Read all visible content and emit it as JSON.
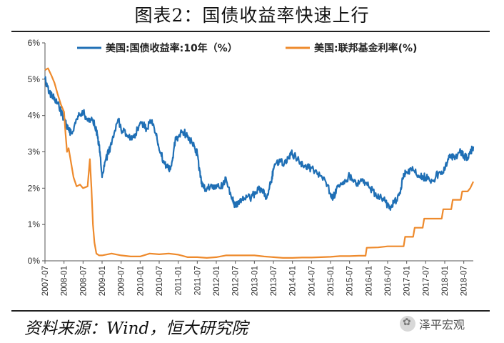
{
  "title": "图表2：国债收益率快速上行",
  "source": "资料来源：Wind，恒大研究院",
  "watermark": {
    "text": "泽平宏观",
    "icon": "wechat-flower-icon"
  },
  "colors": {
    "us10y": "#1f6fb5",
    "fedfunds": "#ee8a2c",
    "axis": "#555555"
  },
  "chart_data": {
    "type": "line",
    "title": "图表2：国债收益率快速上行",
    "xlabel": "",
    "ylabel": "",
    "ylim": [
      0,
      6
    ],
    "yticks": [
      0,
      1,
      2,
      3,
      4,
      5,
      6
    ],
    "ytick_labels": [
      "0%",
      "1%",
      "2%",
      "3%",
      "4%",
      "5%",
      "6%"
    ],
    "xlim": [
      2007.5,
      2018.75
    ],
    "xtick_labels": [
      "2007-07",
      "2008-01",
      "2008-07",
      "2009-01",
      "2009-07",
      "2010-01",
      "2010-07",
      "2011-01",
      "2011-07",
      "2012-01",
      "2012-07",
      "2013-01",
      "2013-07",
      "2014-01",
      "2014-07",
      "2015-01",
      "2015-07",
      "2016-01",
      "2016-07",
      "2017-01",
      "2017-07",
      "2018-01",
      "2018-07"
    ],
    "legend_position": "top",
    "series": [
      {
        "name": "美国:国债收益率:10年（%）",
        "color": "#1f6fb5",
        "x": [
          2007.5,
          2007.62,
          2007.75,
          2007.87,
          2008.0,
          2008.12,
          2008.2,
          2008.33,
          2008.45,
          2008.5,
          2008.62,
          2008.75,
          2008.85,
          2008.92,
          2009.0,
          2009.1,
          2009.25,
          2009.42,
          2009.5,
          2009.67,
          2009.83,
          2010.0,
          2010.17,
          2010.3,
          2010.42,
          2010.5,
          2010.62,
          2010.75,
          2010.83,
          2010.92,
          2011.0,
          2011.12,
          2011.25,
          2011.42,
          2011.5,
          2011.58,
          2011.67,
          2011.83,
          2012.0,
          2012.17,
          2012.25,
          2012.42,
          2012.5,
          2012.58,
          2012.75,
          2012.92,
          2013.0,
          2013.17,
          2013.33,
          2013.42,
          2013.5,
          2013.67,
          2013.75,
          2013.92,
          2014.0,
          2014.17,
          2014.33,
          2014.5,
          2014.67,
          2014.83,
          2015.0,
          2015.08,
          2015.17,
          2015.33,
          2015.5,
          2015.67,
          2015.83,
          2016.0,
          2016.17,
          2016.33,
          2016.5,
          2016.58,
          2016.67,
          2016.83,
          2016.92,
          2017.0,
          2017.17,
          2017.33,
          2017.5,
          2017.67,
          2017.83,
          2018.0,
          2018.12,
          2018.25,
          2018.42,
          2018.5,
          2018.58,
          2018.67,
          2018.75
        ],
        "values": [
          5.0,
          4.6,
          4.5,
          4.25,
          3.9,
          3.6,
          3.5,
          3.9,
          4.05,
          4.1,
          3.85,
          3.9,
          3.6,
          3.2,
          2.3,
          2.8,
          3.2,
          3.9,
          3.6,
          3.45,
          3.4,
          3.8,
          3.65,
          3.85,
          3.45,
          3.05,
          2.75,
          2.5,
          2.7,
          3.3,
          3.4,
          3.55,
          3.45,
          3.15,
          2.95,
          2.3,
          2.0,
          2.0,
          2.0,
          2.05,
          2.3,
          1.7,
          1.5,
          1.65,
          1.7,
          1.75,
          1.85,
          2.0,
          1.75,
          2.1,
          2.5,
          2.8,
          2.65,
          2.9,
          2.95,
          2.75,
          2.6,
          2.55,
          2.4,
          2.3,
          1.85,
          1.75,
          2.05,
          2.1,
          2.35,
          2.1,
          2.25,
          2.05,
          1.85,
          1.75,
          1.55,
          1.45,
          1.6,
          1.85,
          2.4,
          2.45,
          2.5,
          2.3,
          2.3,
          2.2,
          2.4,
          2.5,
          2.85,
          2.85,
          3.0,
          2.9,
          2.85,
          2.95,
          3.15
        ]
      },
      {
        "name": "美国:联邦基金利率(%)",
        "color": "#ee8a2c",
        "x": [
          2007.5,
          2007.58,
          2007.67,
          2007.75,
          2007.83,
          2007.92,
          2008.0,
          2008.04,
          2008.08,
          2008.12,
          2008.17,
          2008.25,
          2008.33,
          2008.42,
          2008.5,
          2008.62,
          2008.68,
          2008.72,
          2008.76,
          2008.8,
          2008.85,
          2008.92,
          2009.0,
          2009.25,
          2009.5,
          2009.75,
          2010.0,
          2010.25,
          2010.5,
          2010.75,
          2011.0,
          2011.25,
          2011.5,
          2011.75,
          2012.0,
          2012.25,
          2012.5,
          2012.75,
          2013.0,
          2013.25,
          2013.5,
          2013.75,
          2014.0,
          2014.25,
          2014.5,
          2014.75,
          2015.0,
          2015.25,
          2015.5,
          2015.75,
          2015.92,
          2015.95,
          2016.25,
          2016.5,
          2016.75,
          2016.92,
          2016.96,
          2017.17,
          2017.21,
          2017.42,
          2017.46,
          2017.92,
          2017.96,
          2018.17,
          2018.21,
          2018.42,
          2018.46,
          2018.6,
          2018.67,
          2018.75
        ],
        "values": [
          5.25,
          5.3,
          5.1,
          4.9,
          4.6,
          4.3,
          4.1,
          3.5,
          3.0,
          3.1,
          2.8,
          2.3,
          2.05,
          2.1,
          2.0,
          2.05,
          2.8,
          2.0,
          1.0,
          0.5,
          0.2,
          0.15,
          0.15,
          0.2,
          0.15,
          0.12,
          0.12,
          0.2,
          0.18,
          0.2,
          0.17,
          0.1,
          0.1,
          0.08,
          0.1,
          0.15,
          0.15,
          0.15,
          0.15,
          0.12,
          0.1,
          0.08,
          0.08,
          0.09,
          0.09,
          0.1,
          0.11,
          0.13,
          0.13,
          0.14,
          0.14,
          0.36,
          0.37,
          0.4,
          0.4,
          0.4,
          0.66,
          0.66,
          0.91,
          0.91,
          1.16,
          1.16,
          1.42,
          1.42,
          1.68,
          1.68,
          1.91,
          1.91,
          2.0,
          2.18
        ]
      }
    ]
  }
}
